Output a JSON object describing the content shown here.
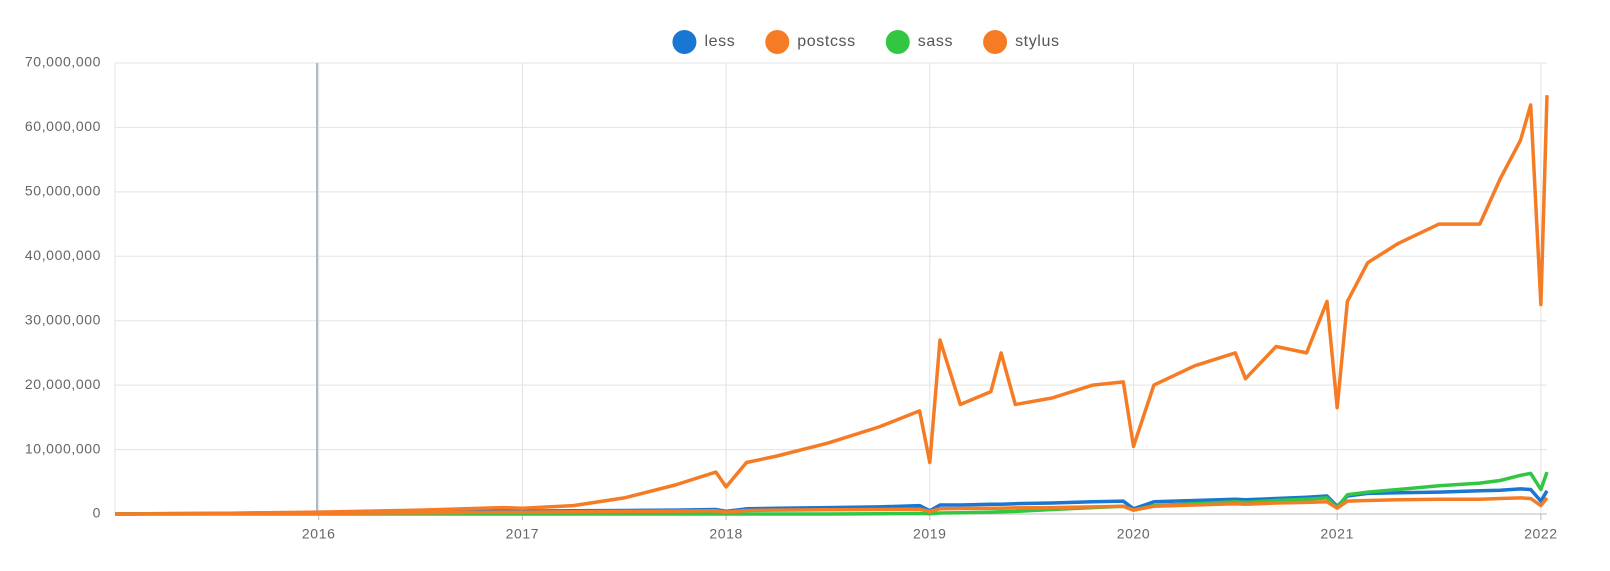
{
  "chart_data": {
    "type": "line",
    "x": [
      2015.0,
      2015.5,
      2016.0,
      2016.5,
      2016.9,
      2017.0,
      2017.25,
      2017.5,
      2017.75,
      2017.95,
      2018.0,
      2018.1,
      2018.25,
      2018.5,
      2018.75,
      2018.95,
      2019.0,
      2019.05,
      2019.15,
      2019.3,
      2019.35,
      2019.42,
      2019.6,
      2019.8,
      2019.95,
      2020.0,
      2020.1,
      2020.3,
      2020.5,
      2020.55,
      2020.7,
      2020.85,
      2020.95,
      2021.0,
      2021.05,
      2021.15,
      2021.3,
      2021.5,
      2021.7,
      2021.8,
      2021.9,
      2021.95,
      2022.0,
      2022.03
    ],
    "series": [
      {
        "name": "less",
        "color": "#1976d2",
        "values": [
          0,
          100000,
          200000,
          300000,
          450000,
          450000,
          500000,
          550000,
          600000,
          700000,
          400000,
          800000,
          900000,
          1000000,
          1100000,
          1300000,
          500000,
          1400000,
          1400000,
          1500000,
          1500000,
          1600000,
          1700000,
          1900000,
          2000000,
          800000,
          1900000,
          2100000,
          2300000,
          2200000,
          2400000,
          2600000,
          2800000,
          1200000,
          2800000,
          3200000,
          3300000,
          3400000,
          3600000,
          3700000,
          3900000,
          3800000,
          2000000,
          3600000
        ]
      },
      {
        "name": "postcss",
        "color": "#f57c25",
        "values": [
          0,
          100000,
          300000,
          600000,
          1000000,
          900000,
          1300000,
          2500000,
          4500000,
          6500000,
          4200000,
          8000000,
          9000000,
          11000000,
          13500000,
          16000000,
          8000000,
          27000000,
          17000000,
          19000000,
          25000000,
          17000000,
          18000000,
          20000000,
          20500000,
          10500000,
          20000000,
          23000000,
          25000000,
          21000000,
          26000000,
          25000000,
          33000000,
          16500000,
          33000000,
          39000000,
          42000000,
          45000000,
          45000000,
          52000000,
          58000000,
          63500000,
          32500000,
          65000000
        ]
      },
      {
        "name": "sass",
        "color": "#33c643",
        "values": [
          0,
          0,
          0,
          0,
          0,
          0,
          0,
          0,
          0,
          0,
          0,
          0,
          0,
          0,
          50000,
          100000,
          50000,
          150000,
          200000,
          300000,
          350000,
          400000,
          700000,
          1000000,
          1200000,
          600000,
          1300000,
          1600000,
          1900000,
          1800000,
          2100000,
          2300000,
          2500000,
          1000000,
          3000000,
          3400000,
          3800000,
          4400000,
          4800000,
          5200000,
          6000000,
          6300000,
          3800000,
          6500000
        ]
      },
      {
        "name": "stylus",
        "color": "#f57c25",
        "values": [
          0,
          50000,
          100000,
          200000,
          300000,
          300000,
          350000,
          400000,
          450000,
          500000,
          300000,
          550000,
          600000,
          650000,
          700000,
          750000,
          400000,
          800000,
          850000,
          900000,
          900000,
          950000,
          1000000,
          1100000,
          1200000,
          600000,
          1200000,
          1400000,
          1600000,
          1500000,
          1700000,
          1800000,
          1900000,
          900000,
          2000000,
          2100000,
          2200000,
          2300000,
          2300000,
          2400000,
          2500000,
          2400000,
          1300000,
          2500000
        ]
      }
    ],
    "xlim": [
      2015.0,
      2022.03
    ],
    "xticks": [
      2016,
      2017,
      2018,
      2019,
      2020,
      2021,
      2022
    ],
    "ylim": [
      0,
      70000000
    ],
    "yticks": [
      0,
      {
        "value": 10000000,
        "label": "10,000,000"
      },
      {
        "value": 20000000,
        "label": "20,000,000"
      },
      {
        "value": 30000000,
        "label": "30,000,000"
      },
      {
        "value": 40000000,
        "label": "40,000,000"
      },
      {
        "value": 50000000,
        "label": "50,000,000"
      },
      {
        "value": 60000000,
        "label": "60,000,000"
      },
      {
        "value": 70000000,
        "label": "70,000,000"
      }
    ],
    "grid": true
  }
}
